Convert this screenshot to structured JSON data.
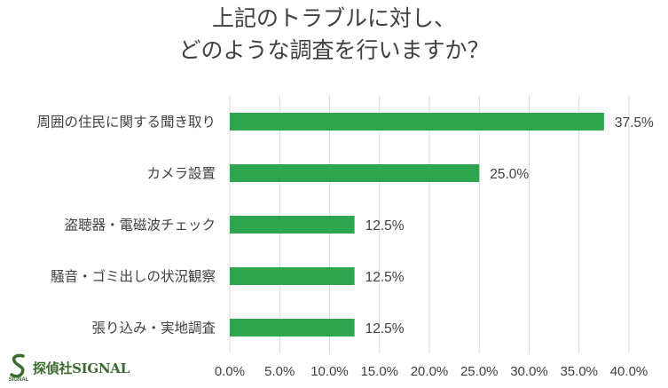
{
  "title_line1": "上記のトラブルに対し、",
  "title_line2": "どのような調査を行いますか？",
  "chart_data": {
    "type": "bar",
    "orientation": "horizontal",
    "title": "上記のトラブルに対し、どのような調査を行いますか？",
    "categories": [
      "周囲の住民に関する聞き取り",
      "カメラ設置",
      "盗聴器・電磁波チェック",
      "騒音・ゴミ出しの状況観察",
      "張り込み・実地調査"
    ],
    "values": [
      37.5,
      25.0,
      12.5,
      12.5,
      12.5
    ],
    "value_labels": [
      "37.5%",
      "25.0%",
      "12.5%",
      "12.5%",
      "12.5%"
    ],
    "xlim": [
      0,
      40
    ],
    "xticks": [
      0,
      5,
      10,
      15,
      20,
      25,
      30,
      35,
      40
    ],
    "xtick_labels": [
      "0.0%",
      "5.0%",
      "10.0%",
      "15.0%",
      "20.0%",
      "25.0%",
      "30.0%",
      "35.0%",
      "40.0%"
    ],
    "grid": "vertical",
    "xlabel": "",
    "ylabel": ""
  },
  "colors": {
    "bar": "#2ea64d",
    "grid": "#d9d9d9",
    "text": "#404040",
    "logo": "#3a6a2e"
  },
  "logo": {
    "text": "探偵社SIGNAL",
    "mark_text": "SIGNAL",
    "mark_letter": "S"
  }
}
